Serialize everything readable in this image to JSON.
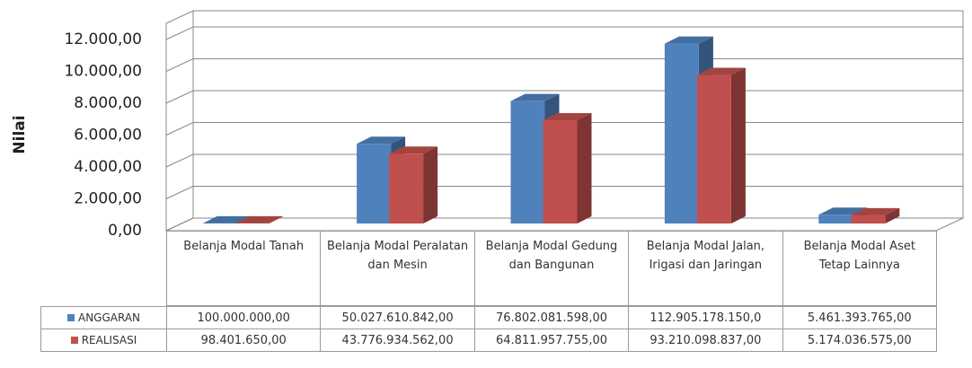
{
  "chart_data": {
    "type": "bar3d",
    "y_label": "Nilai",
    "categories": [
      "Belanja Modal Tanah",
      "Belanja Modal Peralatan dan Mesin",
      "Belanja Modal Gedung dan Bangunan",
      "Belanja Modal Jalan, Irigasi dan Jaringan",
      "Belanja Modal Aset Tetap Lainnya"
    ],
    "series": [
      {
        "name": "ANGGARAN",
        "color": "#4f81bd",
        "values": [
          10,
          5002.7610842,
          7680.2081598,
          11290.517815,
          546.1393765
        ],
        "value_labels": [
          "100.000.000,00",
          "50.027.610.842,00",
          "76.802.081.598,00",
          "112.905.178.150,0",
          "5.461.393.765,00"
        ]
      },
      {
        "name": "REALISASI",
        "color": "#c0504d",
        "values": [
          9.840165,
          4377.6934562,
          6481.1957755,
          9321.0098837,
          517.4036575
        ],
        "value_labels": [
          "98.401.650,00",
          "43.776.934.562,00",
          "64.811.957.755,00",
          "93.210.098.837,00",
          "5.174.036.575,00"
        ]
      }
    ],
    "ylim": [
      0,
      12000
    ],
    "yticks": [
      {
        "value": 0,
        "label": "0,00"
      },
      {
        "value": 2000,
        "label": "2.000,00"
      },
      {
        "value": 4000,
        "label": "4.000,00"
      },
      {
        "value": 6000,
        "label": "6.000,00"
      },
      {
        "value": 8000,
        "label": "8.000,00"
      },
      {
        "value": 10000,
        "label": "10.000,00"
      },
      {
        "value": 12000,
        "label": "12.000,00"
      }
    ],
    "grid": true,
    "data_table": true
  }
}
